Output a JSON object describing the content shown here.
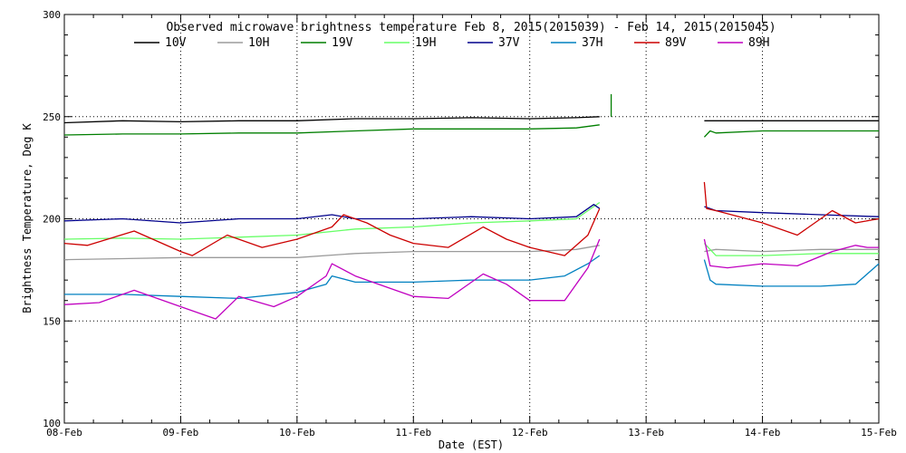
{
  "chart_data": {
    "type": "line",
    "title": "Observed microwave brightness temperature Feb  8, 2015(2015039) - Feb 14, 2015(2015045)",
    "xlabel": "Date (EST)",
    "ylabel": "Brightness Temperature, Deg K",
    "xlim": [
      0,
      7
    ],
    "ylim": [
      100,
      300
    ],
    "x_tick_values": [
      0,
      1,
      2,
      3,
      4,
      5,
      6,
      7
    ],
    "x_tick_labels": [
      "08-Feb",
      "09-Feb",
      "10-Feb",
      "11-Feb",
      "12-Feb",
      "13-Feb",
      "14-Feb",
      "15-Feb"
    ],
    "y_ticks": [
      100,
      150,
      200,
      250,
      300
    ],
    "grid": true,
    "legend_position": "top",
    "series": [
      {
        "name": "10V",
        "color": "#000000",
        "segments": [
          {
            "x": [
              0,
              0.5,
              1,
              1.5,
              2,
              2.5,
              3,
              3.5,
              4,
              4.4,
              4.6
            ],
            "y": [
              247,
              248,
              247.5,
              248,
              248,
              249,
              249,
              249.5,
              249,
              249.5,
              250
            ]
          },
          {
            "x": [
              5.5,
              6,
              6.5,
              7
            ],
            "y": [
              248,
              248,
              248,
              248
            ]
          }
        ]
      },
      {
        "name": "10H",
        "color": "#9b9b9b",
        "segments": [
          {
            "x": [
              0,
              0.5,
              1,
              1.5,
              2,
              2.5,
              3,
              3.5,
              4,
              4.4,
              4.6
            ],
            "y": [
              180,
              180.5,
              181,
              181,
              181,
              183,
              184,
              184,
              184,
              185,
              187
            ]
          },
          {
            "x": [
              5.5,
              5.6,
              6,
              6.5,
              7
            ],
            "y": [
              184,
              185,
              184,
              185,
              185
            ]
          }
        ]
      },
      {
        "name": "19V",
        "color": "#007f00",
        "segments": [
          {
            "x": [
              0,
              0.5,
              1,
              1.5,
              2,
              2.5,
              3,
              3.5,
              4,
              4.4,
              4.6
            ],
            "y": [
              241,
              241.5,
              241.5,
              242,
              242,
              243,
              244,
              244,
              244,
              244.5,
              246
            ]
          },
          {
            "x": [
              5.5,
              5.55,
              5.6,
              6,
              6.5,
              7
            ],
            "y": [
              240,
              243,
              242,
              243,
              243,
              243
            ]
          },
          {
            "x": [
              4.7,
              4.7
            ],
            "y": [
              250,
              261
            ]
          }
        ]
      },
      {
        "name": "19H",
        "color": "#66ff66",
        "segments": [
          {
            "x": [
              0,
              0.5,
              1,
              1.5,
              2,
              2.5,
              3,
              3.5,
              4,
              4.4,
              4.6
            ],
            "y": [
              190,
              190.5,
              190,
              191,
              192,
              195,
              196,
              198,
              199,
              200,
              208
            ]
          },
          {
            "x": [
              5.5,
              5.6,
              6,
              6.5,
              7
            ],
            "y": [
              188,
              182,
              182,
              183,
              183
            ]
          }
        ]
      },
      {
        "name": "37V",
        "color": "#00008b",
        "segments": [
          {
            "x": [
              0,
              0.5,
              1,
              1.5,
              2,
              2.3,
              2.5,
              3,
              3.5,
              4,
              4.4,
              4.55,
              4.6
            ],
            "y": [
              199,
              200,
              198,
              200,
              200,
              202,
              200,
              200,
              201,
              200,
              201,
              207,
              205
            ]
          },
          {
            "x": [
              5.5,
              5.6,
              6,
              6.5,
              7
            ],
            "y": [
              206,
              204,
              203,
              202,
              201
            ]
          }
        ]
      },
      {
        "name": "37H",
        "color": "#0080c0",
        "segments": [
          {
            "x": [
              0,
              0.5,
              1,
              1.5,
              2,
              2.25,
              2.3,
              2.5,
              3,
              3.5,
              4,
              4.3,
              4.5,
              4.6
            ],
            "y": [
              163,
              163,
              162,
              161,
              164,
              168,
              172,
              169,
              169,
              170,
              170,
              172,
              178,
              182
            ]
          },
          {
            "x": [
              5.5,
              5.55,
              5.6,
              6,
              6.5,
              6.8,
              7
            ],
            "y": [
              180,
              170,
              168,
              167,
              167,
              168,
              178
            ]
          }
        ]
      },
      {
        "name": "89V",
        "color": "#cc0000",
        "segments": [
          {
            "x": [
              0,
              0.2,
              0.6,
              1,
              1.1,
              1.4,
              1.7,
              2,
              2.3,
              2.4,
              2.6,
              2.8,
              3,
              3.3,
              3.6,
              3.8,
              4,
              4.3,
              4.5,
              4.6
            ],
            "y": [
              188,
              187,
              194,
              184,
              182,
              192,
              186,
              190,
              196,
              202,
              198,
              192,
              188,
              186,
              196,
              190,
              186,
              182,
              192,
              205
            ]
          },
          {
            "x": [
              5.5,
              5.52,
              5.6,
              6,
              6.3,
              6.6,
              6.8,
              7
            ],
            "y": [
              218,
              205,
              204,
              198,
              192,
              204,
              198,
              200
            ]
          }
        ]
      },
      {
        "name": "89H",
        "color": "#c000c0",
        "segments": [
          {
            "x": [
              0,
              0.3,
              0.6,
              1,
              1.3,
              1.5,
              1.8,
              2,
              2.25,
              2.3,
              2.5,
              2.8,
              3,
              3.3,
              3.6,
              3.8,
              4,
              4.3,
              4.5,
              4.6
            ],
            "y": [
              158,
              159,
              165,
              157,
              151,
              162,
              157,
              162,
              172,
              178,
              172,
              166,
              162,
              161,
              173,
              168,
              160,
              160,
              176,
              190
            ]
          },
          {
            "x": [
              5.5,
              5.55,
              5.7,
              6,
              6.3,
              6.6,
              6.8,
              6.9,
              7
            ],
            "y": [
              190,
              177,
              176,
              178,
              177,
              184,
              187,
              186,
              186
            ]
          }
        ]
      }
    ]
  }
}
